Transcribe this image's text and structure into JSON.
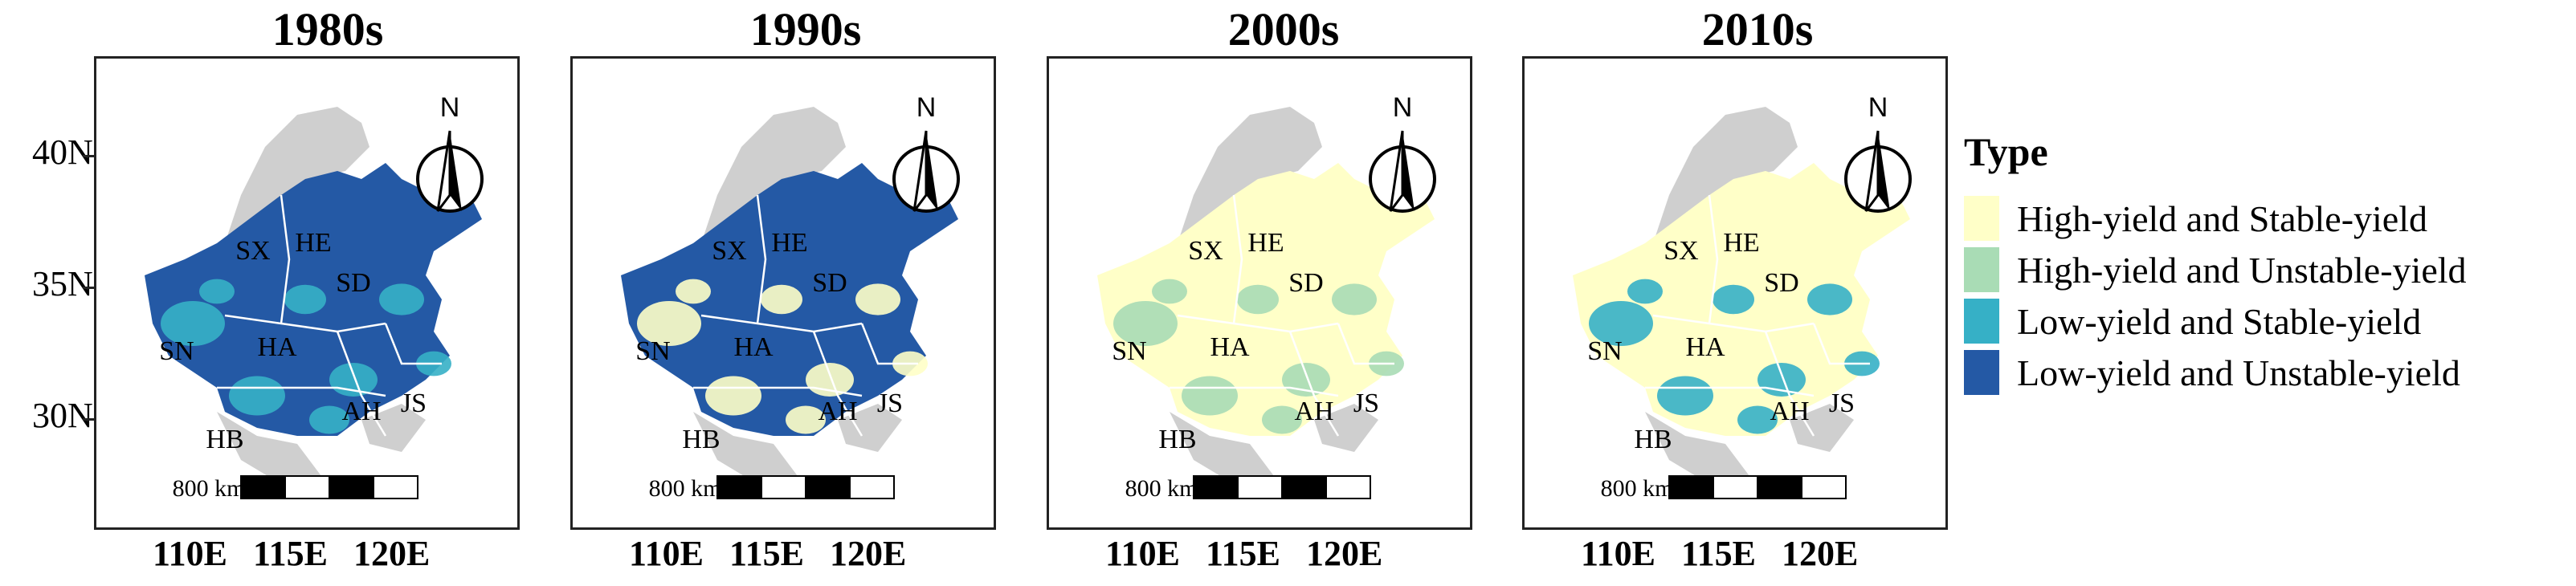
{
  "colors": {
    "high_stable": "#ffffc8",
    "high_unstable": "#a9dcb5",
    "low_stable": "#36b0c6",
    "low_unstable": "#2459a5",
    "background_region": "#cfcfcf"
  },
  "panels": [
    {
      "title": "1980s",
      "dominant": "low_unstable",
      "secondary": "low_stable"
    },
    {
      "title": "1990s",
      "dominant": "low_unstable",
      "secondary": "high_stable"
    },
    {
      "title": "2000s",
      "dominant": "high_stable",
      "secondary": "high_unstable"
    },
    {
      "title": "2010s",
      "dominant": "high_stable",
      "secondary": "low_stable"
    }
  ],
  "provinces": [
    "SX",
    "HE",
    "SD",
    "SN",
    "HA",
    "AH",
    "JS",
    "HB"
  ],
  "north_label": "N",
  "scale_label": "800 km",
  "y_axis_labels": [
    "40N",
    "35N",
    "30N"
  ],
  "x_axis_labels": [
    "110E",
    "115E",
    "120E"
  ],
  "legend": {
    "title": "Type",
    "items": [
      {
        "key": "high_stable",
        "label": "High-yield and Stable-yield"
      },
      {
        "key": "high_unstable",
        "label": "High-yield and Unstable-yield"
      },
      {
        "key": "low_stable",
        "label": "Low-yield and Stable-yield"
      },
      {
        "key": "low_unstable",
        "label": "Low-yield and Unstable-yield"
      }
    ]
  }
}
